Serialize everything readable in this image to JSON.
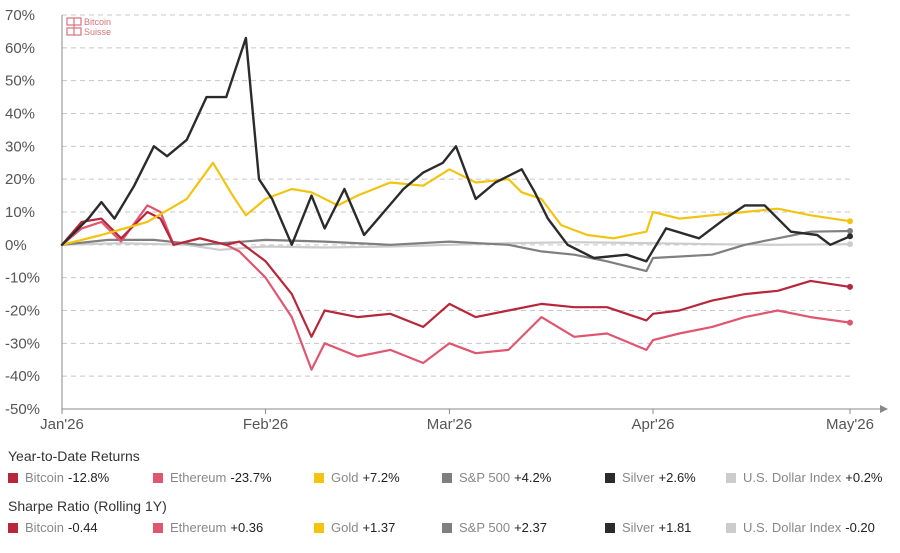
{
  "logo": {
    "line1": "Bitcoin",
    "line2": "Suisse"
  },
  "legend_sections": [
    {
      "title": "Year-to-Date Returns",
      "items": [
        {
          "name": "Bitcoin",
          "value": "-12.8%",
          "color": "#b8263a"
        },
        {
          "name": "Ethereum",
          "value": "-23.7%",
          "color": "#e0566f"
        },
        {
          "name": "Gold",
          "value": "+7.2%",
          "color": "#f2c40f"
        },
        {
          "name": "S&P 500",
          "value": "+4.2%",
          "color": "#7f7f7f"
        },
        {
          "name": "Silver",
          "value": "+2.6%",
          "color": "#2b2b2b"
        },
        {
          "name": "U.S. Dollar Index",
          "value": "+0.2%",
          "color": "#cccccc"
        }
      ]
    },
    {
      "title": "Sharpe Ratio (Rolling 1Y)",
      "items": [
        {
          "name": "Bitcoin",
          "value": "-0.44",
          "color": "#b8263a"
        },
        {
          "name": "Ethereum",
          "value": "+0.36",
          "color": "#e0566f"
        },
        {
          "name": "Gold",
          "value": "+1.37",
          "color": "#f2c40f"
        },
        {
          "name": "S&P 500",
          "value": "+2.37",
          "color": "#7f7f7f"
        },
        {
          "name": "Silver",
          "value": "+1.81",
          "color": "#2b2b2b"
        },
        {
          "name": "U.S. Dollar Index",
          "value": "-0.20",
          "color": "#cccccc"
        }
      ]
    }
  ],
  "chart_data": {
    "type": "line",
    "title": "",
    "xlabel": "",
    "ylabel": "",
    "x_range": [
      "2026-01-01",
      "2026-05-01"
    ],
    "ylim": [
      -50,
      70
    ],
    "y_ticks": [
      -50,
      -40,
      -30,
      -20,
      -10,
      0,
      10,
      20,
      30,
      40,
      50,
      60,
      70
    ],
    "y_tick_labels": [
      "-50%",
      "-40%",
      "-30%",
      "-20%",
      "-10%",
      "0%",
      "10%",
      "20%",
      "30%",
      "40%",
      "50%",
      "60%",
      "70%"
    ],
    "x_ticks": [
      "2026-01-01",
      "2026-02-01",
      "2026-03-01",
      "2026-04-01",
      "2026-05-01"
    ],
    "x_tick_labels": [
      "Jan'26",
      "Feb'26",
      "Mar'26",
      "Apr'26",
      "May'26"
    ],
    "grid": "horizontal dashed",
    "legend_position": "bottom",
    "series": [
      {
        "name": "U.S. Dollar Index",
        "color": "#cccccc",
        "x": [
          "2026-01-01",
          "2026-01-10",
          "2026-01-20",
          "2026-01-25",
          "2026-02-01",
          "2026-02-10",
          "2026-02-20",
          "2026-03-01",
          "2026-03-10",
          "2026-03-20",
          "2026-04-01",
          "2026-04-10",
          "2026-04-20",
          "2026-05-01"
        ],
        "y": [
          0,
          0.5,
          0,
          -1.5,
          -0.5,
          -0.8,
          -0.5,
          0,
          0.5,
          0.8,
          0.5,
          0.2,
          0,
          0.2
        ]
      },
      {
        "name": "S&P 500",
        "color": "#7f7f7f",
        "x": [
          "2026-01-01",
          "2026-01-08",
          "2026-01-15",
          "2026-01-22",
          "2026-02-01",
          "2026-02-10",
          "2026-02-20",
          "2026-03-01",
          "2026-03-10",
          "2026-03-15",
          "2026-03-20",
          "2026-03-25",
          "2026-03-31",
          "2026-04-01",
          "2026-04-10",
          "2026-04-15",
          "2026-04-20",
          "2026-04-25",
          "2026-05-01"
        ],
        "y": [
          0,
          1.5,
          1.5,
          0,
          1.5,
          1,
          0,
          1,
          0,
          -2,
          -3,
          -5,
          -8,
          -4,
          -3,
          0,
          2,
          4,
          4.2
        ]
      },
      {
        "name": "Ethereum",
        "color": "#e0566f",
        "x": [
          "2026-01-01",
          "2026-01-04",
          "2026-01-07",
          "2026-01-10",
          "2026-01-14",
          "2026-01-16",
          "2026-01-18",
          "2026-01-22",
          "2026-01-26",
          "2026-01-28",
          "2026-02-01",
          "2026-02-05",
          "2026-02-08",
          "2026-02-10",
          "2026-02-15",
          "2026-02-20",
          "2026-02-25",
          "2026-03-01",
          "2026-03-05",
          "2026-03-10",
          "2026-03-15",
          "2026-03-20",
          "2026-03-25",
          "2026-03-31",
          "2026-04-01",
          "2026-04-05",
          "2026-04-10",
          "2026-04-15",
          "2026-04-20",
          "2026-04-25",
          "2026-05-01"
        ],
        "y": [
          0,
          5,
          7,
          1,
          12,
          10,
          0,
          2,
          0,
          -2,
          -10,
          -22,
          -38,
          -30,
          -34,
          -32,
          -36,
          -30,
          -33,
          -32,
          -22,
          -28,
          -27,
          -32,
          -29,
          -27,
          -25,
          -22,
          -20,
          -22,
          -23.7
        ]
      },
      {
        "name": "Bitcoin",
        "color": "#b8263a",
        "x": [
          "2026-01-01",
          "2026-01-04",
          "2026-01-07",
          "2026-01-10",
          "2026-01-14",
          "2026-01-16",
          "2026-01-18",
          "2026-01-22",
          "2026-01-26",
          "2026-01-28",
          "2026-02-01",
          "2026-02-05",
          "2026-02-08",
          "2026-02-10",
          "2026-02-15",
          "2026-02-20",
          "2026-02-25",
          "2026-03-01",
          "2026-03-05",
          "2026-03-10",
          "2026-03-15",
          "2026-03-20",
          "2026-03-25",
          "2026-03-31",
          "2026-04-01",
          "2026-04-05",
          "2026-04-10",
          "2026-04-15",
          "2026-04-20",
          "2026-04-25",
          "2026-05-01"
        ],
        "y": [
          0,
          7,
          8,
          2,
          10,
          8,
          0,
          2,
          0,
          1,
          -5,
          -15,
          -28,
          -20,
          -22,
          -21,
          -25,
          -18,
          -22,
          -20,
          -18,
          -19,
          -19,
          -23,
          -21,
          -20,
          -17,
          -15,
          -14,
          -11,
          -12.8
        ]
      },
      {
        "name": "Gold",
        "color": "#f2c40f",
        "x": [
          "2026-01-01",
          "2026-01-07",
          "2026-01-14",
          "2026-01-20",
          "2026-01-24",
          "2026-01-27",
          "2026-01-29",
          "2026-02-01",
          "2026-02-05",
          "2026-02-08",
          "2026-02-12",
          "2026-02-15",
          "2026-02-20",
          "2026-02-25",
          "2026-03-01",
          "2026-03-05",
          "2026-03-10",
          "2026-03-12",
          "2026-03-15",
          "2026-03-18",
          "2026-03-22",
          "2026-03-26",
          "2026-03-31",
          "2026-04-01",
          "2026-04-05",
          "2026-04-10",
          "2026-04-15",
          "2026-04-20",
          "2026-04-25",
          "2026-05-01"
        ],
        "y": [
          0,
          3,
          7,
          14,
          25,
          15,
          9,
          14,
          17,
          16,
          12,
          15,
          19,
          18,
          23,
          19,
          20,
          16,
          14,
          6,
          3,
          2,
          4,
          10,
          8,
          9,
          10,
          11,
          9,
          7.2
        ]
      },
      {
        "name": "Silver",
        "color": "#2b2b2b",
        "x": [
          "2026-01-01",
          "2026-01-05",
          "2026-01-07",
          "2026-01-09",
          "2026-01-12",
          "2026-01-15",
          "2026-01-17",
          "2026-01-20",
          "2026-01-23",
          "2026-01-26",
          "2026-01-29",
          "2026-01-31",
          "2026-02-02",
          "2026-02-05",
          "2026-02-08",
          "2026-02-10",
          "2026-02-13",
          "2026-02-16",
          "2026-02-19",
          "2026-02-22",
          "2026-02-25",
          "2026-02-28",
          "2026-03-02",
          "2026-03-05",
          "2026-03-08",
          "2026-03-12",
          "2026-03-14",
          "2026-03-16",
          "2026-03-19",
          "2026-03-23",
          "2026-03-28",
          "2026-03-31",
          "2026-04-03",
          "2026-04-08",
          "2026-04-12",
          "2026-04-15",
          "2026-04-18",
          "2026-04-22",
          "2026-04-26",
          "2026-04-28",
          "2026-05-01"
        ],
        "y": [
          0,
          8,
          13,
          8,
          18,
          30,
          27,
          32,
          45,
          45,
          63,
          20,
          14,
          0,
          15,
          5,
          17,
          3,
          10,
          17,
          22,
          25,
          30,
          14,
          19,
          23,
          16,
          8,
          0,
          -4,
          -3,
          -5,
          5,
          2,
          8,
          12,
          12,
          4,
          3,
          0,
          2.6
        ]
      }
    ]
  }
}
